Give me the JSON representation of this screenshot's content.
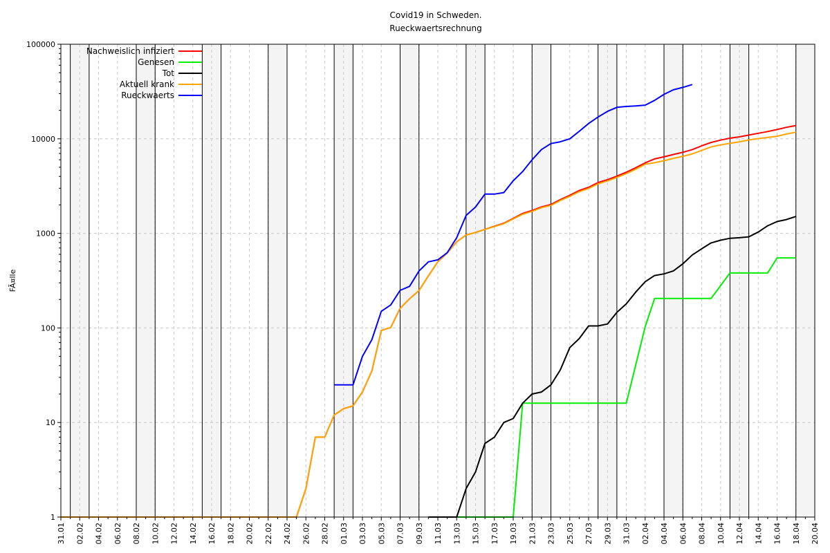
{
  "chart_data": {
    "type": "line",
    "title": "Covid19 in Schweden.",
    "subtitle": "Rueckwaertsrechnung",
    "xlabel": "",
    "ylabel": "FÃ¤lle",
    "yscale": "log",
    "ylim": [
      1,
      100000
    ],
    "yticks": [
      1,
      10,
      100,
      1000,
      10000,
      100000
    ],
    "ytick_labels": [
      "1",
      "10",
      "100",
      "1000",
      "10000",
      "100000"
    ],
    "x_start": "2020-01-31",
    "x_end": "2020-04-20",
    "xtick_labels": [
      "31.01",
      "02.02",
      "04.02",
      "06.02",
      "08.02",
      "10.02",
      "12.02",
      "14.02",
      "16.02",
      "18.02",
      "20.02",
      "22.02",
      "24.02",
      "26.02",
      "28.02",
      "01.03",
      "03.03",
      "05.03",
      "07.03",
      "09.03",
      "11.03",
      "13.03",
      "15.03",
      "17.03",
      "19.03",
      "21.03",
      "23.03",
      "25.03",
      "27.03",
      "29.03",
      "31.03",
      "02.04",
      "04.04",
      "06.04",
      "08.04",
      "10.04",
      "12.04",
      "14.04",
      "16.04",
      "18.04",
      "20.04"
    ],
    "weekend_shading": true,
    "grid": true,
    "legend_position": "top-left",
    "series": [
      {
        "name": "Nachweislich infiziert",
        "color": "#ff0000",
        "x": [
          "2020-01-31",
          "2020-02-25",
          "2020-02-26",
          "2020-02-27",
          "2020-02-28",
          "2020-02-29",
          "2020-03-01",
          "2020-03-02",
          "2020-03-03",
          "2020-03-04",
          "2020-03-05",
          "2020-03-06",
          "2020-03-07",
          "2020-03-08",
          "2020-03-09",
          "2020-03-10",
          "2020-03-11",
          "2020-03-12",
          "2020-03-13",
          "2020-03-14",
          "2020-03-15",
          "2020-03-16",
          "2020-03-17",
          "2020-03-18",
          "2020-03-19",
          "2020-03-20",
          "2020-03-21",
          "2020-03-22",
          "2020-03-23",
          "2020-03-24",
          "2020-03-25",
          "2020-03-26",
          "2020-03-27",
          "2020-03-28",
          "2020-03-29",
          "2020-03-30",
          "2020-03-31",
          "2020-04-01",
          "2020-04-02",
          "2020-04-03",
          "2020-04-04",
          "2020-04-05",
          "2020-04-06",
          "2020-04-07",
          "2020-04-08",
          "2020-04-09",
          "2020-04-10",
          "2020-04-11",
          "2020-04-12",
          "2020-04-13",
          "2020-04-14",
          "2020-04-15",
          "2020-04-16",
          "2020-04-17",
          "2020-04-18"
        ],
        "y": [
          1,
          1,
          2,
          7,
          7,
          12,
          14,
          15,
          21,
          35,
          94,
          101,
          161,
          203,
          248,
          355,
          500,
          620,
          814,
          961,
          1022,
          1103,
          1190,
          1279,
          1439,
          1623,
          1746,
          1906,
          2016,
          2272,
          2526,
          2840,
          3069,
          3447,
          3700,
          4028,
          4435,
          4947,
          5568,
          6131,
          6443,
          6830,
          7206,
          7693,
          8419,
          9141,
          9685,
          10151,
          10483,
          10948,
          11445,
          11927,
          12540,
          13216,
          13822
        ]
      },
      {
        "name": "Genesen",
        "color": "#00ee00",
        "x": [
          "2020-03-10",
          "2020-03-19",
          "2020-03-20",
          "2020-03-31",
          "2020-04-02",
          "2020-04-03",
          "2020-04-09",
          "2020-04-11",
          "2020-04-15",
          "2020-04-16",
          "2020-04-18"
        ],
        "y": [
          1,
          1,
          16,
          16,
          103,
          205,
          205,
          381,
          381,
          550,
          550
        ]
      },
      {
        "name": "Tot",
        "color": "#000000",
        "x": [
          "2020-03-10",
          "2020-03-13",
          "2020-03-14",
          "2020-03-15",
          "2020-03-16",
          "2020-03-17",
          "2020-03-18",
          "2020-03-19",
          "2020-03-20",
          "2020-03-21",
          "2020-03-22",
          "2020-03-23",
          "2020-03-24",
          "2020-03-25",
          "2020-03-26",
          "2020-03-27",
          "2020-03-28",
          "2020-03-29",
          "2020-03-30",
          "2020-03-31",
          "2020-04-01",
          "2020-04-02",
          "2020-04-03",
          "2020-04-04",
          "2020-04-05",
          "2020-04-06",
          "2020-04-07",
          "2020-04-08",
          "2020-04-09",
          "2020-04-10",
          "2020-04-11",
          "2020-04-12",
          "2020-04-13",
          "2020-04-14",
          "2020-04-15",
          "2020-04-16",
          "2020-04-17",
          "2020-04-18"
        ],
        "y": [
          1,
          1,
          2,
          3,
          6,
          7,
          10,
          11,
          16,
          20,
          21,
          25,
          36,
          62,
          77,
          105,
          105,
          110,
          146,
          180,
          239,
          308,
          358,
          373,
          401,
          477,
          591,
          687,
          793,
          846,
          887,
          899,
          919,
          1033,
          1203,
          1333,
          1400,
          1511
        ]
      },
      {
        "name": "Aktuell krank",
        "color": "#ffa500",
        "x": [
          "2020-01-31",
          "2020-02-25",
          "2020-02-26",
          "2020-02-27",
          "2020-02-28",
          "2020-02-29",
          "2020-03-01",
          "2020-03-02",
          "2020-03-03",
          "2020-03-04",
          "2020-03-05",
          "2020-03-06",
          "2020-03-07",
          "2020-03-08",
          "2020-03-09",
          "2020-03-10",
          "2020-03-11",
          "2020-03-12",
          "2020-03-13",
          "2020-03-14",
          "2020-03-15",
          "2020-03-16",
          "2020-03-17",
          "2020-03-18",
          "2020-03-19",
          "2020-03-20",
          "2020-03-21",
          "2020-03-22",
          "2020-03-23",
          "2020-03-24",
          "2020-03-25",
          "2020-03-26",
          "2020-03-27",
          "2020-03-28",
          "2020-03-29",
          "2020-03-30",
          "2020-03-31",
          "2020-04-01",
          "2020-04-02",
          "2020-04-03",
          "2020-04-04",
          "2020-04-05",
          "2020-04-06",
          "2020-04-07",
          "2020-04-08",
          "2020-04-09",
          "2020-04-10",
          "2020-04-11",
          "2020-04-12",
          "2020-04-13",
          "2020-04-14",
          "2020-04-15",
          "2020-04-16",
          "2020-04-17",
          "2020-04-18"
        ],
        "y": [
          1,
          1,
          2,
          7,
          7,
          12,
          14,
          15,
          21,
          35,
          94,
          101,
          161,
          203,
          248,
          355,
          500,
          620,
          814,
          961,
          1022,
          1100,
          1180,
          1265,
          1420,
          1590,
          1710,
          1870,
          1975,
          2225,
          2460,
          2760,
          2980,
          3340,
          3590,
          3900,
          4280,
          4770,
          5370,
          5590,
          5870,
          6210,
          6530,
          6920,
          7540,
          8210,
          8610,
          8950,
          9290,
          9710,
          10050,
          10330,
          10650,
          11240,
          11760
        ]
      },
      {
        "name": "Rueckwaerts",
        "color": "#0000ff",
        "x": [
          "2020-02-29",
          "2020-03-01",
          "2020-03-02",
          "2020-03-03",
          "2020-03-04",
          "2020-03-05",
          "2020-03-06",
          "2020-03-07",
          "2020-03-08",
          "2020-03-09",
          "2020-03-10",
          "2020-03-11",
          "2020-03-12",
          "2020-03-13",
          "2020-03-14",
          "2020-03-15",
          "2020-03-16",
          "2020-03-17",
          "2020-03-18",
          "2020-03-19",
          "2020-03-20",
          "2020-03-21",
          "2020-03-22",
          "2020-03-23",
          "2020-03-24",
          "2020-03-25",
          "2020-03-26",
          "2020-03-27",
          "2020-03-28",
          "2020-03-29",
          "2020-03-30",
          "2020-03-31",
          "2020-04-01",
          "2020-04-02",
          "2020-04-03",
          "2020-04-04",
          "2020-04-05",
          "2020-04-06",
          "2020-04-07",
          "2020-04-08"
        ],
        "y": [
          25,
          25,
          25,
          50,
          75,
          150,
          175,
          250,
          275,
          400,
          500,
          525,
          625,
          900,
          1550,
          1900,
          2600,
          2600,
          2700,
          3600,
          4500,
          6000,
          7700,
          8900,
          9300,
          10000,
          12000,
          14500,
          17000,
          19500,
          21500,
          22000,
          22300,
          22700,
          25500,
          29500,
          33000,
          35000,
          37500,
          null
        ]
      }
    ]
  }
}
